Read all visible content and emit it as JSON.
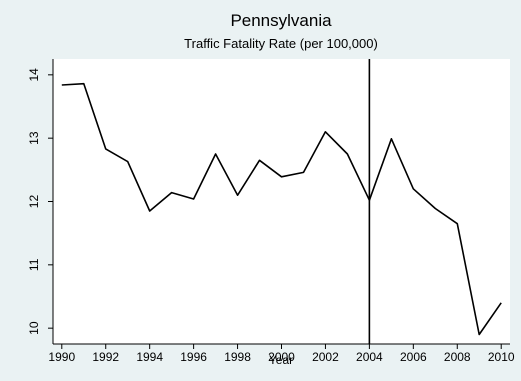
{
  "chart_data": {
    "type": "line",
    "title": "Pennsylvania",
    "subtitle": "Traffic Fatality Rate (per 100,000)",
    "xlabel": "Year",
    "ylabel": "",
    "xlim": [
      1989.6,
      2010.4
    ],
    "ylim": [
      9.75,
      14.25
    ],
    "xticks": [
      1990,
      1992,
      1994,
      1996,
      1998,
      2000,
      2002,
      2004,
      2006,
      2008,
      2010
    ],
    "yticks": [
      10,
      11,
      12,
      13,
      14
    ],
    "grid": false,
    "legend": "none",
    "series": [
      {
        "x": [
          1990,
          1991,
          1992,
          1993,
          1994,
          1995,
          1996,
          1997,
          1998,
          1999,
          2000,
          2001,
          2002,
          2003,
          2004,
          2005,
          2006,
          2007,
          2008,
          2009,
          2010
        ],
        "values": [
          13.84,
          13.86,
          12.83,
          12.63,
          11.85,
          12.14,
          12.04,
          12.75,
          12.1,
          12.65,
          12.39,
          12.46,
          13.1,
          12.75,
          12.02,
          12.99,
          12.2,
          11.89,
          11.65,
          9.9,
          10.4
        ]
      }
    ],
    "reference_lines": [
      {
        "axis": "x",
        "value": 2004
      }
    ],
    "colors": {
      "background": "#eaf2f3",
      "plot_background": "#ffffff",
      "line": "#000000"
    }
  }
}
